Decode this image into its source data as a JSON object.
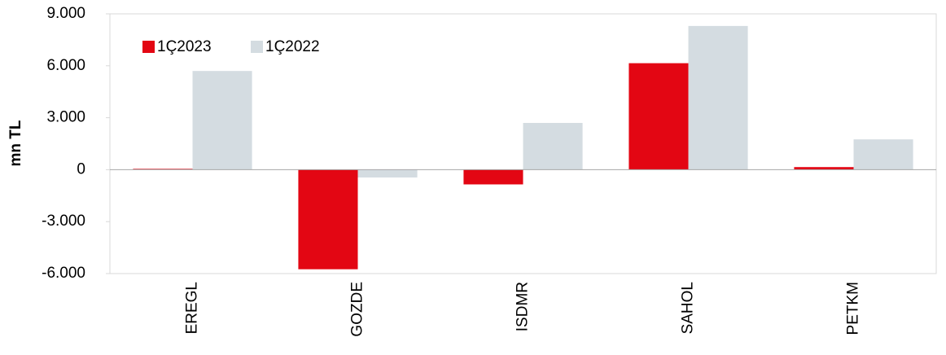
{
  "chart_data": {
    "type": "bar",
    "y_label": "mn TL",
    "categories": [
      "EREGL",
      "GOZDE",
      "ISDMR",
      "SAHOL",
      "PETKM"
    ],
    "series": [
      {
        "name": "1Ç2023",
        "color": "#e30613",
        "values": [
          50,
          -5750,
          -850,
          6150,
          150
        ]
      },
      {
        "name": "1Ç2022",
        "color": "#d4dce1",
        "values": [
          5700,
          -450,
          2700,
          8300,
          1750
        ]
      }
    ],
    "ylim": [
      -6000,
      9000
    ],
    "yticks": [
      {
        "value": -6000,
        "label": "-6.000"
      },
      {
        "value": -3000,
        "label": "-3.000"
      },
      0,
      {
        "value": 3000,
        "label": "3.000"
      },
      {
        "value": 6000,
        "label": "6.000"
      },
      {
        "value": 9000,
        "label": "9.000"
      }
    ],
    "legend": "upper left"
  }
}
